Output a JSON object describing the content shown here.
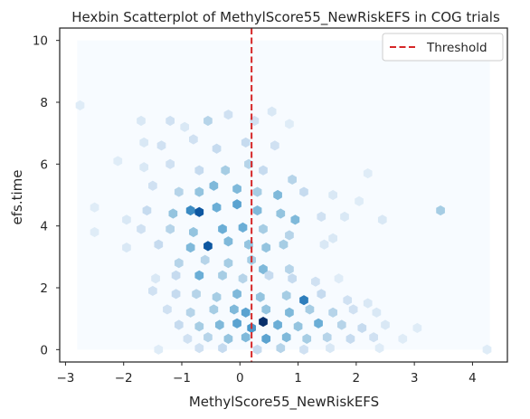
{
  "chart_data": {
    "type": "hexbin",
    "title": "Hexbin Scatterplot of MethylScore55_NewRiskEFS in COG trials",
    "xlabel": "MethylScore55_NewRiskEFS",
    "ylabel": "efs.time",
    "xlim": [
      -3.1,
      4.6
    ],
    "ylim": [
      -0.4,
      10.4
    ],
    "xticks": [
      -3,
      -2,
      -1,
      0,
      1,
      2,
      3,
      4
    ],
    "yticks": [
      0,
      2,
      4,
      6,
      8,
      10
    ],
    "xtick_labels": [
      "−3",
      "−2",
      "−1",
      "0",
      "1",
      "2",
      "3",
      "4"
    ],
    "ytick_labels": [
      "0",
      "2",
      "4",
      "6",
      "8",
      "10"
    ],
    "colormap": "Blues",
    "background_color": "#f7fbff",
    "extent": {
      "x": [
        -2.8,
        4.3
      ],
      "y": [
        0,
        10
      ]
    },
    "grid": false,
    "threshold": {
      "x": 0.2,
      "color": "#d62728",
      "style": "dashed",
      "label": "Threshold"
    },
    "legend": {
      "position": "top-right",
      "entries": [
        "Threshold"
      ]
    },
    "bins": [
      {
        "x": -2.75,
        "y": 7.9,
        "level": 0.12
      },
      {
        "x": -1.7,
        "y": 7.4,
        "level": 0.15
      },
      {
        "x": -1.2,
        "y": 7.4,
        "level": 0.2
      },
      {
        "x": -0.95,
        "y": 7.2,
        "level": 0.15
      },
      {
        "x": -0.55,
        "y": 7.4,
        "level": 0.3
      },
      {
        "x": -0.2,
        "y": 7.6,
        "level": 0.2
      },
      {
        "x": 0.25,
        "y": 7.4,
        "level": 0.2
      },
      {
        "x": 0.55,
        "y": 7.7,
        "level": 0.15
      },
      {
        "x": 0.85,
        "y": 7.3,
        "level": 0.12
      },
      {
        "x": -1.65,
        "y": 6.7,
        "level": 0.15
      },
      {
        "x": -1.35,
        "y": 6.6,
        "level": 0.2
      },
      {
        "x": -0.8,
        "y": 6.8,
        "level": 0.2
      },
      {
        "x": -0.4,
        "y": 6.5,
        "level": 0.25
      },
      {
        "x": 0.1,
        "y": 6.7,
        "level": 0.25
      },
      {
        "x": 0.6,
        "y": 6.6,
        "level": 0.2
      },
      {
        "x": -2.1,
        "y": 6.1,
        "level": 0.12
      },
      {
        "x": -1.65,
        "y": 5.9,
        "level": 0.15
      },
      {
        "x": -1.2,
        "y": 6.0,
        "level": 0.2
      },
      {
        "x": -0.7,
        "y": 5.8,
        "level": 0.25
      },
      {
        "x": -0.25,
        "y": 5.8,
        "level": 0.35
      },
      {
        "x": 0.15,
        "y": 6.0,
        "level": 0.3
      },
      {
        "x": 0.4,
        "y": 5.8,
        "level": 0.25
      },
      {
        "x": 0.9,
        "y": 5.5,
        "level": 0.3
      },
      {
        "x": 2.2,
        "y": 5.7,
        "level": 0.12
      },
      {
        "x": -1.5,
        "y": 5.3,
        "level": 0.2
      },
      {
        "x": -1.05,
        "y": 5.1,
        "level": 0.3
      },
      {
        "x": -0.7,
        "y": 5.1,
        "level": 0.4
      },
      {
        "x": -0.45,
        "y": 5.3,
        "level": 0.45
      },
      {
        "x": -0.05,
        "y": 5.2,
        "level": 0.45
      },
      {
        "x": 0.3,
        "y": 5.1,
        "level": 0.35
      },
      {
        "x": 0.65,
        "y": 5.0,
        "level": 0.45
      },
      {
        "x": 1.1,
        "y": 5.1,
        "level": 0.25
      },
      {
        "x": 1.6,
        "y": 5.0,
        "level": 0.15
      },
      {
        "x": 2.05,
        "y": 4.8,
        "level": 0.12
      },
      {
        "x": -2.5,
        "y": 4.6,
        "level": 0.12
      },
      {
        "x": -1.95,
        "y": 4.2,
        "level": 0.15
      },
      {
        "x": -1.6,
        "y": 4.5,
        "level": 0.25
      },
      {
        "x": -1.15,
        "y": 4.4,
        "level": 0.4
      },
      {
        "x": -0.85,
        "y": 4.5,
        "level": 0.65
      },
      {
        "x": -0.7,
        "y": 4.45,
        "level": 0.85
      },
      {
        "x": -0.4,
        "y": 4.6,
        "level": 0.5
      },
      {
        "x": -0.05,
        "y": 4.7,
        "level": 0.55
      },
      {
        "x": 0.3,
        "y": 4.5,
        "level": 0.45
      },
      {
        "x": 0.7,
        "y": 4.4,
        "level": 0.4
      },
      {
        "x": 0.95,
        "y": 4.2,
        "level": 0.45
      },
      {
        "x": 1.4,
        "y": 4.3,
        "level": 0.2
      },
      {
        "x": 1.8,
        "y": 4.3,
        "level": 0.15
      },
      {
        "x": 2.45,
        "y": 4.2,
        "level": 0.15
      },
      {
        "x": 3.45,
        "y": 4.5,
        "level": 0.35
      },
      {
        "x": -2.5,
        "y": 3.8,
        "level": 0.12
      },
      {
        "x": -1.7,
        "y": 3.9,
        "level": 0.2
      },
      {
        "x": -1.2,
        "y": 3.9,
        "level": 0.3
      },
      {
        "x": -0.8,
        "y": 3.8,
        "level": 0.4
      },
      {
        "x": -0.3,
        "y": 3.9,
        "level": 0.5
      },
      {
        "x": 0.05,
        "y": 3.95,
        "level": 0.5
      },
      {
        "x": 0.4,
        "y": 3.9,
        "level": 0.35
      },
      {
        "x": 0.85,
        "y": 3.7,
        "level": 0.3
      },
      {
        "x": 1.6,
        "y": 3.6,
        "level": 0.15
      },
      {
        "x": -1.95,
        "y": 3.3,
        "level": 0.15
      },
      {
        "x": -1.4,
        "y": 3.4,
        "level": 0.25
      },
      {
        "x": -0.85,
        "y": 3.3,
        "level": 0.45
      },
      {
        "x": -0.55,
        "y": 3.35,
        "level": 0.85
      },
      {
        "x": -0.2,
        "y": 3.5,
        "level": 0.45
      },
      {
        "x": 0.15,
        "y": 3.4,
        "level": 0.4
      },
      {
        "x": 0.45,
        "y": 3.3,
        "level": 0.4
      },
      {
        "x": 0.75,
        "y": 3.4,
        "level": 0.35
      },
      {
        "x": 1.45,
        "y": 3.4,
        "level": 0.15
      },
      {
        "x": -1.05,
        "y": 2.8,
        "level": 0.3
      },
      {
        "x": -0.6,
        "y": 2.9,
        "level": 0.3
      },
      {
        "x": -0.2,
        "y": 2.8,
        "level": 0.35
      },
      {
        "x": 0.2,
        "y": 2.9,
        "level": 0.35
      },
      {
        "x": 0.4,
        "y": 2.6,
        "level": 0.45
      },
      {
        "x": 0.85,
        "y": 2.6,
        "level": 0.3
      },
      {
        "x": -1.45,
        "y": 2.3,
        "level": 0.15
      },
      {
        "x": -1.1,
        "y": 2.4,
        "level": 0.25
      },
      {
        "x": -0.7,
        "y": 2.4,
        "level": 0.5
      },
      {
        "x": -0.3,
        "y": 2.4,
        "level": 0.35
      },
      {
        "x": 0.05,
        "y": 2.3,
        "level": 0.3
      },
      {
        "x": 0.5,
        "y": 2.4,
        "level": 0.25
      },
      {
        "x": 0.9,
        "y": 2.3,
        "level": 0.25
      },
      {
        "x": 1.3,
        "y": 2.2,
        "level": 0.2
      },
      {
        "x": 1.7,
        "y": 2.3,
        "level": 0.12
      },
      {
        "x": -1.5,
        "y": 1.9,
        "level": 0.2
      },
      {
        "x": -1.1,
        "y": 1.8,
        "level": 0.25
      },
      {
        "x": -0.75,
        "y": 1.8,
        "level": 0.3
      },
      {
        "x": -0.4,
        "y": 1.7,
        "level": 0.35
      },
      {
        "x": -0.05,
        "y": 1.8,
        "level": 0.45
      },
      {
        "x": 0.35,
        "y": 1.7,
        "level": 0.4
      },
      {
        "x": 0.8,
        "y": 1.75,
        "level": 0.35
      },
      {
        "x": 1.1,
        "y": 1.6,
        "level": 0.7
      },
      {
        "x": 1.4,
        "y": 1.8,
        "level": 0.25
      },
      {
        "x": 1.85,
        "y": 1.6,
        "level": 0.2
      },
      {
        "x": 2.2,
        "y": 1.5,
        "level": 0.15
      },
      {
        "x": -1.25,
        "y": 1.3,
        "level": 0.2
      },
      {
        "x": -0.85,
        "y": 1.2,
        "level": 0.3
      },
      {
        "x": -0.45,
        "y": 1.3,
        "level": 0.35
      },
      {
        "x": -0.1,
        "y": 1.3,
        "level": 0.45
      },
      {
        "x": 0.1,
        "y": 1.2,
        "level": 0.55
      },
      {
        "x": 0.45,
        "y": 1.3,
        "level": 0.4
      },
      {
        "x": 0.85,
        "y": 1.2,
        "level": 0.45
      },
      {
        "x": 1.2,
        "y": 1.3,
        "level": 0.35
      },
      {
        "x": 1.6,
        "y": 1.2,
        "level": 0.3
      },
      {
        "x": 1.95,
        "y": 1.3,
        "level": 0.2
      },
      {
        "x": 2.35,
        "y": 1.2,
        "level": 0.15
      },
      {
        "x": -1.05,
        "y": 0.8,
        "level": 0.25
      },
      {
        "x": -0.7,
        "y": 0.75,
        "level": 0.35
      },
      {
        "x": -0.35,
        "y": 0.8,
        "level": 0.45
      },
      {
        "x": -0.05,
        "y": 0.85,
        "level": 0.55
      },
      {
        "x": 0.2,
        "y": 0.7,
        "level": 0.6
      },
      {
        "x": 0.4,
        "y": 0.9,
        "level": 1.0
      },
      {
        "x": 0.65,
        "y": 0.8,
        "level": 0.5
      },
      {
        "x": 1.0,
        "y": 0.75,
        "level": 0.4
      },
      {
        "x": 1.35,
        "y": 0.85,
        "level": 0.5
      },
      {
        "x": 1.75,
        "y": 0.8,
        "level": 0.3
      },
      {
        "x": 2.1,
        "y": 0.7,
        "level": 0.25
      },
      {
        "x": 2.5,
        "y": 0.8,
        "level": 0.15
      },
      {
        "x": 3.05,
        "y": 0.7,
        "level": 0.12
      },
      {
        "x": -0.9,
        "y": 0.35,
        "level": 0.2
      },
      {
        "x": -0.55,
        "y": 0.4,
        "level": 0.3
      },
      {
        "x": -0.2,
        "y": 0.35,
        "level": 0.4
      },
      {
        "x": 0.1,
        "y": 0.4,
        "level": 0.45
      },
      {
        "x": 0.45,
        "y": 0.35,
        "level": 0.55
      },
      {
        "x": 0.8,
        "y": 0.4,
        "level": 0.45
      },
      {
        "x": 1.15,
        "y": 0.35,
        "level": 0.35
      },
      {
        "x": 1.5,
        "y": 0.4,
        "level": 0.3
      },
      {
        "x": 1.9,
        "y": 0.35,
        "level": 0.25
      },
      {
        "x": 2.3,
        "y": 0.4,
        "level": 0.2
      },
      {
        "x": 2.8,
        "y": 0.35,
        "level": 0.12
      },
      {
        "x": -1.4,
        "y": 0.0,
        "level": 0.12
      },
      {
        "x": -0.7,
        "y": 0.05,
        "level": 0.2
      },
      {
        "x": -0.3,
        "y": 0.05,
        "level": 0.25
      },
      {
        "x": 0.3,
        "y": 0.0,
        "level": 0.25
      },
      {
        "x": 0.7,
        "y": 0.05,
        "level": 0.3
      },
      {
        "x": 1.1,
        "y": 0.0,
        "level": 0.2
      },
      {
        "x": 1.55,
        "y": 0.05,
        "level": 0.15
      },
      {
        "x": 2.4,
        "y": 0.05,
        "level": 0.12
      },
      {
        "x": 4.25,
        "y": 0.0,
        "level": 0.12
      }
    ]
  }
}
